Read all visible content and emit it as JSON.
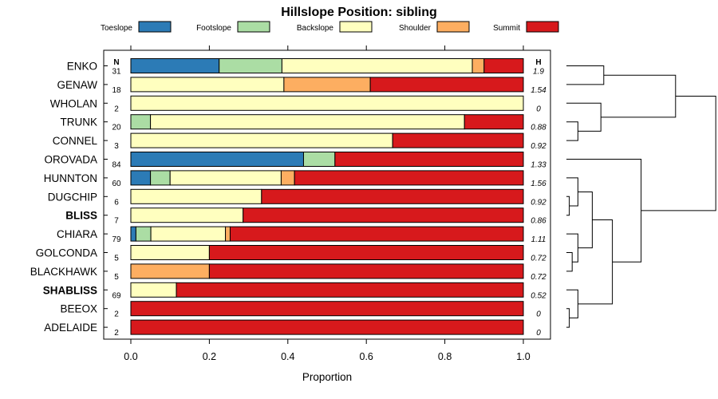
{
  "chart_data": {
    "type": "bar",
    "orientation": "horizontal",
    "stacked": true,
    "title": "Hillslope Position: sibling",
    "xlabel": "Proportion",
    "xlim": [
      0,
      1
    ],
    "x_ticks": [
      "0.0",
      "0.2",
      "0.4",
      "0.6",
      "0.8",
      "1.0"
    ],
    "legend_position": "top",
    "n_header": "N",
    "h_header": "H",
    "series": [
      {
        "name": "Toeslope",
        "color": "#2c7bb6"
      },
      {
        "name": "Footslope",
        "color": "#abdda4"
      },
      {
        "name": "Backslope",
        "color": "#ffffbf"
      },
      {
        "name": "Shoulder",
        "color": "#fdae61"
      },
      {
        "name": "Summit",
        "color": "#d7191c"
      }
    ],
    "rows": [
      {
        "label": "ENKO",
        "bold": false,
        "n": "31",
        "h": "1.9",
        "values": [
          0.225,
          0.16,
          0.485,
          0.03,
          0.1
        ]
      },
      {
        "label": "GENAW",
        "bold": false,
        "n": "18",
        "h": "1.54",
        "values": [
          0,
          0,
          0.39,
          0.22,
          0.39
        ]
      },
      {
        "label": "WHOLAN",
        "bold": false,
        "n": "2",
        "h": "0",
        "values": [
          0,
          0,
          1.0,
          0,
          0
        ]
      },
      {
        "label": "TRUNK",
        "bold": false,
        "n": "20",
        "h": "0.88",
        "values": [
          0,
          0.05,
          0.8,
          0,
          0.15
        ]
      },
      {
        "label": "CONNEL",
        "bold": false,
        "n": "3",
        "h": "0.92",
        "values": [
          0,
          0,
          0.667,
          0,
          0.333
        ]
      },
      {
        "label": "OROVADA",
        "bold": false,
        "n": "84",
        "h": "1.33",
        "values": [
          0.44,
          0.08,
          0,
          0,
          0.48
        ]
      },
      {
        "label": "HUNNTON",
        "bold": false,
        "n": "60",
        "h": "1.56",
        "values": [
          0.05,
          0.05,
          0.283,
          0.034,
          0.583
        ]
      },
      {
        "label": "DUGCHIP",
        "bold": false,
        "n": "6",
        "h": "0.92",
        "values": [
          0,
          0,
          0.333,
          0,
          0.667
        ]
      },
      {
        "label": "BLISS",
        "bold": true,
        "n": "7",
        "h": "0.86",
        "values": [
          0,
          0,
          0.286,
          0,
          0.714
        ]
      },
      {
        "label": "CHIARA",
        "bold": false,
        "n": "79",
        "h": "1.11",
        "values": [
          0.013,
          0.038,
          0.19,
          0.012,
          0.747
        ]
      },
      {
        "label": "GOLCONDA",
        "bold": false,
        "n": "5",
        "h": "0.72",
        "values": [
          0,
          0,
          0.2,
          0,
          0.8
        ]
      },
      {
        "label": "BLACKHAWK",
        "bold": false,
        "n": "5",
        "h": "0.72",
        "values": [
          0,
          0,
          0,
          0.2,
          0.8
        ]
      },
      {
        "label": "SHABLISS",
        "bold": true,
        "n": "69",
        "h": "0.52",
        "values": [
          0,
          0,
          0.116,
          0,
          0.884
        ]
      },
      {
        "label": "BEEOX",
        "bold": false,
        "n": "2",
        "h": "0",
        "values": [
          0,
          0,
          0,
          0,
          1.0
        ]
      },
      {
        "label": "ADELAIDE",
        "bold": false,
        "n": "2",
        "h": "0",
        "values": [
          0,
          0,
          0,
          0,
          1.0
        ]
      }
    ],
    "dendrogram": {
      "leaves": [
        "ENKO",
        "GENAW",
        "WHOLAN",
        "TRUNK",
        "CONNEL",
        "OROVADA",
        "HUNNTON",
        "DUGCHIP",
        "BLISS",
        "CHIARA",
        "GOLCONDA",
        "BLACKHAWK",
        "SHABLISS",
        "BEEOX",
        "ADELAIDE"
      ],
      "merges": [
        {
          "a": "ENKO",
          "b": "GENAW",
          "height": 0.13
        },
        {
          "a": "TRUNK",
          "b": "CONNEL",
          "height": 0.04
        },
        {
          "a": "WHOLAN",
          "b": "TRUNK+CONNEL",
          "height": 0.12
        },
        {
          "a": "ENKO+GENAW",
          "b": "WHOLAN+TRUNK+CONNEL",
          "height": 0.38
        },
        {
          "a": "DUGCHIP",
          "b": "BLISS",
          "height": 0.01
        },
        {
          "a": "HUNNTON",
          "b": "DUGCHIP+BLISS",
          "height": 0.04
        },
        {
          "a": "GOLCONDA",
          "b": "BLACKHAWK",
          "height": 0.02
        },
        {
          "a": "CHIARA",
          "b": "GOLCONDA+BLACKHAWK",
          "height": 0.04
        },
        {
          "a": "HUNNTON+DUGCHIP+BLISS",
          "b": "CHIARA+GOLCONDA+BLACKHAWK",
          "height": 0.09
        },
        {
          "a": "BEEOX",
          "b": "ADELAIDE",
          "height": 0.01
        },
        {
          "a": "SHABLISS",
          "b": "BEEOX+ADELAIDE",
          "height": 0.04
        },
        {
          "a": "HUNNTON..BLACKHAWK",
          "b": "SHABLISS+BEEOX+ADELAIDE",
          "height": 0.16
        },
        {
          "a": "OROVADA",
          "b": "HUNNTON..ADELAIDE",
          "height": 0.26
        },
        {
          "a": "ENKO..CONNEL",
          "b": "OROVADA..ADELAIDE",
          "height": 0.52
        }
      ]
    }
  }
}
